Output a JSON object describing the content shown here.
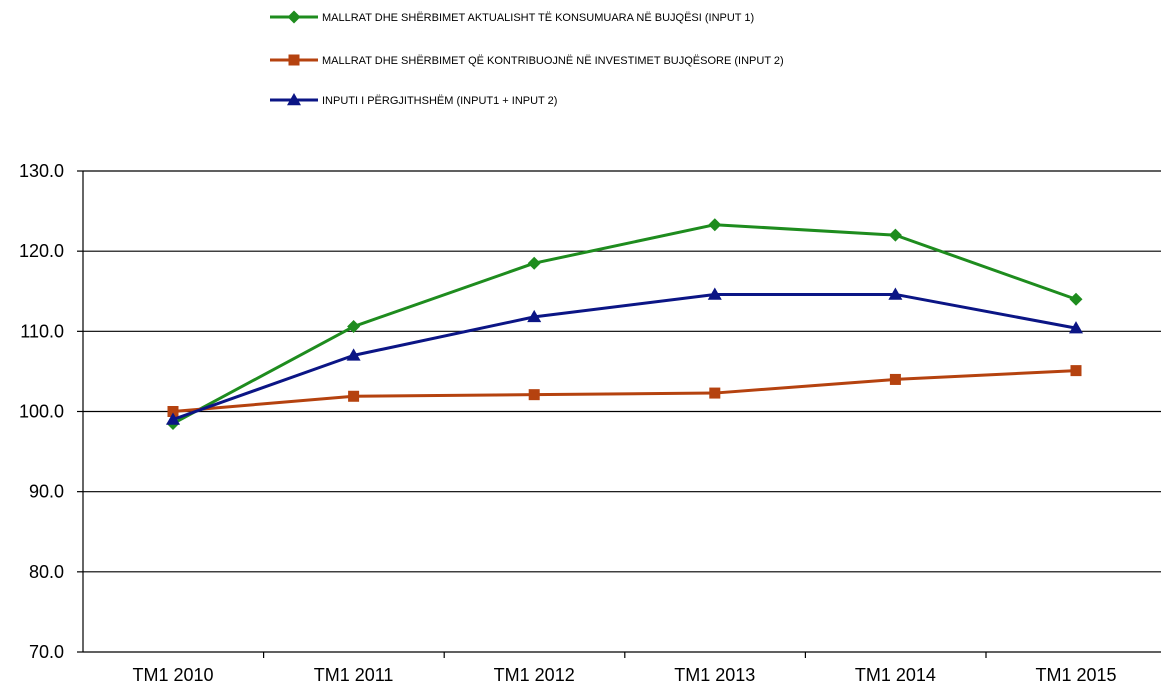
{
  "chart_data": {
    "type": "line",
    "categories": [
      "TM1 2010",
      "TM1 2011",
      "TM1 2012",
      "TM1 2013",
      "TM1 2014",
      "TM1 2015"
    ],
    "series": [
      {
        "name": "MALLRAT DHE SHËRBIMET AKTUALISHT TË KONSUMUARA NË BUJQËSI (INPUT 1)",
        "values": [
          98.5,
          110.6,
          118.5,
          123.3,
          122.0,
          114.0
        ],
        "color": "#1e8c1e",
        "marker": "diamond"
      },
      {
        "name": "MALLRAT DHE SHËRBIMET QË KONTRIBUOJNË NË INVESTIMET BUJQËSORE (INPUT 2)",
        "values": [
          100.0,
          101.9,
          102.1,
          102.3,
          104.0,
          105.1
        ],
        "color": "#b5420f",
        "marker": "square"
      },
      {
        "name": "INPUTI I PËRGJITHSHËM   (INPUT1 + INPUT 2)",
        "values": [
          99.0,
          107.0,
          111.8,
          114.6,
          114.6,
          110.4
        ],
        "color": "#0b1585",
        "marker": "triangle"
      }
    ],
    "ylim": [
      70,
      130
    ],
    "yticks": [
      "70.0",
      "80.0",
      "90.0",
      "100.0",
      "110.0",
      "120.0",
      "130.0"
    ],
    "grid": true,
    "legend_position": "top-center"
  }
}
